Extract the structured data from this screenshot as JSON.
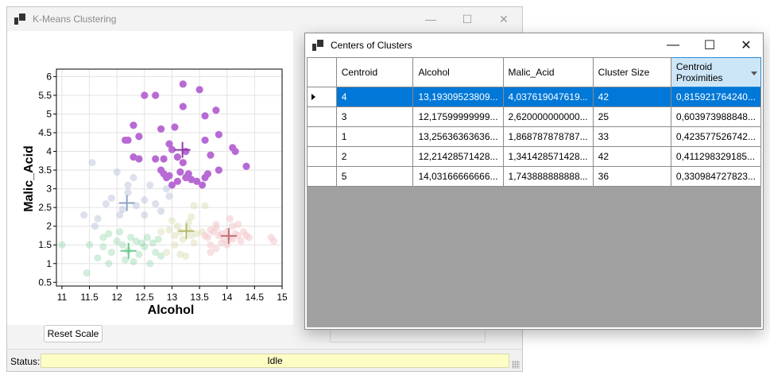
{
  "main_window": {
    "title": "K-Means Clustering",
    "controls": {
      "minimize": "—",
      "maximize": "☐",
      "close": "✕"
    },
    "reset_label": "Reset Scale",
    "status_label": "Status:",
    "status_value": "Idle"
  },
  "chart_data": {
    "type": "scatter",
    "xlabel": "Alcohol",
    "ylabel": "Malic_Acid",
    "xlim": [
      10.9,
      15
    ],
    "ylim": [
      0.4,
      6.2
    ],
    "xticks": [
      "11",
      "11.5",
      "12",
      "12.5",
      "13",
      "13.5",
      "14",
      "14.5",
      "15"
    ],
    "yticks": [
      "0.5",
      "1",
      "1.5",
      "2",
      "2.5",
      "3",
      "3.5",
      "4",
      "4.5",
      "5",
      "5.5",
      "6"
    ],
    "grid": true,
    "series": [
      {
        "color": "#b86ad4",
        "opacity": 1,
        "points": [
          [
            13.2,
            5.8
          ],
          [
            13.5,
            5.65
          ],
          [
            12.5,
            5.5
          ],
          [
            12.7,
            5.5
          ],
          [
            13.2,
            5.2
          ],
          [
            13.8,
            5.1
          ],
          [
            12.3,
            4.7
          ],
          [
            13.6,
            4.95
          ],
          [
            12.8,
            4.6
          ],
          [
            13.05,
            4.65
          ],
          [
            13.85,
            4.45
          ],
          [
            12.4,
            4.4
          ],
          [
            12.15,
            4.3
          ],
          [
            12.2,
            4.3
          ],
          [
            13.6,
            4.3
          ],
          [
            12.95,
            4.2
          ],
          [
            14.1,
            4.1
          ],
          [
            14.15,
            4.0
          ],
          [
            13.0,
            4.05
          ],
          [
            13.25,
            4.0
          ],
          [
            12.3,
            3.85
          ],
          [
            12.4,
            3.8
          ],
          [
            12.7,
            3.8
          ],
          [
            12.85,
            3.8
          ],
          [
            13.1,
            3.85
          ],
          [
            13.7,
            3.9
          ],
          [
            13.2,
            3.7
          ],
          [
            14.35,
            3.6
          ],
          [
            12.8,
            3.5
          ],
          [
            12.85,
            3.4
          ],
          [
            12.95,
            3.35
          ],
          [
            12.9,
            3.3
          ],
          [
            13.3,
            3.4
          ],
          [
            13.15,
            3.45
          ],
          [
            13.6,
            3.3
          ],
          [
            13.65,
            3.4
          ],
          [
            13.25,
            3.3
          ],
          [
            13.35,
            3.25
          ],
          [
            13.45,
            3.2
          ],
          [
            13.55,
            3.1
          ],
          [
            13.0,
            3.1
          ],
          [
            13.85,
            3.5
          ],
          [
            13.1,
            3.2
          ]
        ]
      },
      {
        "color": "#b4bcd8",
        "opacity": 0.45,
        "points": [
          [
            11.55,
            3.7
          ],
          [
            12.0,
            3.45
          ],
          [
            12.3,
            3.3
          ],
          [
            12.6,
            3.1
          ],
          [
            12.2,
            2.9
          ],
          [
            11.9,
            2.75
          ],
          [
            12.5,
            2.7
          ],
          [
            12.7,
            2.6
          ],
          [
            12.35,
            2.55
          ],
          [
            12.1,
            2.45
          ],
          [
            11.8,
            2.6
          ],
          [
            11.65,
            2.2
          ],
          [
            12.5,
            2.3
          ],
          [
            12.8,
            2.4
          ],
          [
            12.05,
            2.3
          ],
          [
            11.4,
            2.3
          ],
          [
            11.6,
            2.0
          ],
          [
            12.9,
            3.0
          ],
          [
            12.95,
            2.8
          ],
          [
            12.2,
            3.1
          ]
        ]
      },
      {
        "color": "#8fd4a8",
        "opacity": 0.4,
        "points": [
          [
            11.0,
            1.5
          ],
          [
            11.5,
            1.5
          ],
          [
            11.75,
            1.45
          ],
          [
            11.85,
            1.8
          ],
          [
            11.9,
            1.3
          ],
          [
            12.0,
            1.6
          ],
          [
            12.1,
            1.5
          ],
          [
            12.2,
            1.35
          ],
          [
            12.25,
            1.7
          ],
          [
            12.35,
            1.6
          ],
          [
            12.4,
            1.25
          ],
          [
            12.45,
            1.55
          ],
          [
            12.5,
            1.45
          ],
          [
            12.55,
            1.7
          ],
          [
            12.6,
            1.0
          ],
          [
            12.65,
            1.55
          ],
          [
            12.7,
            1.3
          ],
          [
            12.75,
            1.65
          ],
          [
            12.3,
            1.05
          ],
          [
            12.15,
            1.1
          ],
          [
            11.85,
            1.0
          ],
          [
            11.65,
            1.15
          ],
          [
            11.45,
            0.75
          ],
          [
            12.8,
            1.2
          ],
          [
            12.05,
            1.85
          ],
          [
            11.75,
            1.7
          ]
        ]
      },
      {
        "color": "#d9dbb0",
        "opacity": 0.45,
        "points": [
          [
            12.8,
            1.85
          ],
          [
            12.95,
            1.9
          ],
          [
            13.05,
            1.75
          ],
          [
            13.1,
            2.0
          ],
          [
            13.15,
            1.85
          ],
          [
            13.2,
            1.65
          ],
          [
            13.3,
            1.9
          ],
          [
            13.35,
            1.75
          ],
          [
            13.4,
            1.55
          ],
          [
            13.45,
            1.8
          ],
          [
            13.05,
            1.5
          ],
          [
            13.15,
            1.25
          ],
          [
            13.25,
            1.2
          ],
          [
            13.0,
            2.15
          ],
          [
            13.3,
            2.1
          ],
          [
            13.55,
            1.85
          ],
          [
            12.9,
            1.3
          ],
          [
            13.6,
            2.55
          ],
          [
            13.4,
            2.55
          ],
          [
            13.35,
            2.25
          ]
        ]
      },
      {
        "color": "#f2c8cc",
        "opacity": 0.55,
        "points": [
          [
            13.6,
            1.75
          ],
          [
            13.65,
            1.7
          ],
          [
            13.7,
            1.9
          ],
          [
            13.75,
            1.85
          ],
          [
            13.8,
            1.95
          ],
          [
            13.85,
            1.75
          ],
          [
            13.9,
            1.8
          ],
          [
            13.95,
            1.65
          ],
          [
            14.0,
            1.85
          ],
          [
            14.05,
            1.7
          ],
          [
            14.1,
            1.65
          ],
          [
            14.15,
            1.8
          ],
          [
            14.2,
            1.75
          ],
          [
            14.25,
            1.6
          ],
          [
            14.3,
            1.85
          ],
          [
            14.35,
            1.75
          ],
          [
            13.7,
            1.5
          ],
          [
            13.8,
            1.4
          ],
          [
            13.9,
            1.55
          ],
          [
            14.0,
            1.5
          ],
          [
            14.1,
            2.0
          ],
          [
            14.2,
            2.05
          ],
          [
            14.4,
            1.7
          ],
          [
            14.8,
            1.7
          ],
          [
            14.85,
            1.6
          ],
          [
            14.05,
            2.2
          ],
          [
            13.7,
            1.3
          ],
          [
            13.8,
            2.05
          ]
        ]
      }
    ],
    "centroids": [
      {
        "x": 13.19,
        "y": 4.04,
        "color": "#8c3aa8"
      },
      {
        "x": 12.18,
        "y": 2.62,
        "color": "#8ea2c2"
      },
      {
        "x": 12.21,
        "y": 1.34,
        "color": "#6ccb8d"
      },
      {
        "x": 13.26,
        "y": 1.87,
        "color": "#b6ba6c"
      },
      {
        "x": 14.03,
        "y": 1.74,
        "color": "#c47078"
      }
    ]
  },
  "centers_window": {
    "title": "Centers of Clusters",
    "controls": {
      "minimize": "—",
      "maximize": "☐",
      "close": "✕"
    },
    "columns": [
      "Centroid",
      "Alcohol",
      "Malic_Acid",
      "Cluster Size",
      "Centroid Proximities"
    ],
    "rows": [
      [
        "4",
        "13,19309523809...",
        "4,037619047619...",
        "42",
        "0,815921764240..."
      ],
      [
        "3",
        "12,17599999999...",
        "2,620000000000...",
        "25",
        "0,603973988848..."
      ],
      [
        "1",
        "13,25636363636...",
        "1,868787878787...",
        "33",
        "0,423577526742..."
      ],
      [
        "2",
        "12,21428571428...",
        "1,341428571428...",
        "42",
        "0,411298329185..."
      ],
      [
        "5",
        "14,03166666666...",
        "1,743888888888...",
        "36",
        "0,330984727823..."
      ]
    ]
  }
}
